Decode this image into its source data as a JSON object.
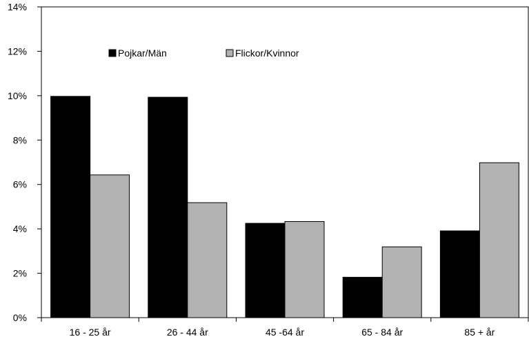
{
  "chart_data": {
    "type": "bar",
    "categories": [
      "16 - 25 år",
      "26 - 44 år",
      "45 -64 år",
      "65 - 84 år",
      "85 + år"
    ],
    "series": [
      {
        "name": "Pojkar/Män",
        "color": "#000000",
        "values": [
          9.97,
          9.93,
          4.25,
          1.82,
          3.91
        ]
      },
      {
        "name": "Flickor/Kvinnor",
        "color": "#b2b2b2",
        "values": [
          6.43,
          5.18,
          4.33,
          3.19,
          6.98
        ]
      }
    ],
    "ylim": [
      0,
      14
    ],
    "yticks": [
      0,
      2,
      4,
      6,
      8,
      10,
      12,
      14
    ],
    "ytick_labels": [
      "0%",
      "2%",
      "4%",
      "6%",
      "8%",
      "10%",
      "12%",
      "14%"
    ],
    "grid": false,
    "legend": "top-left inside"
  }
}
